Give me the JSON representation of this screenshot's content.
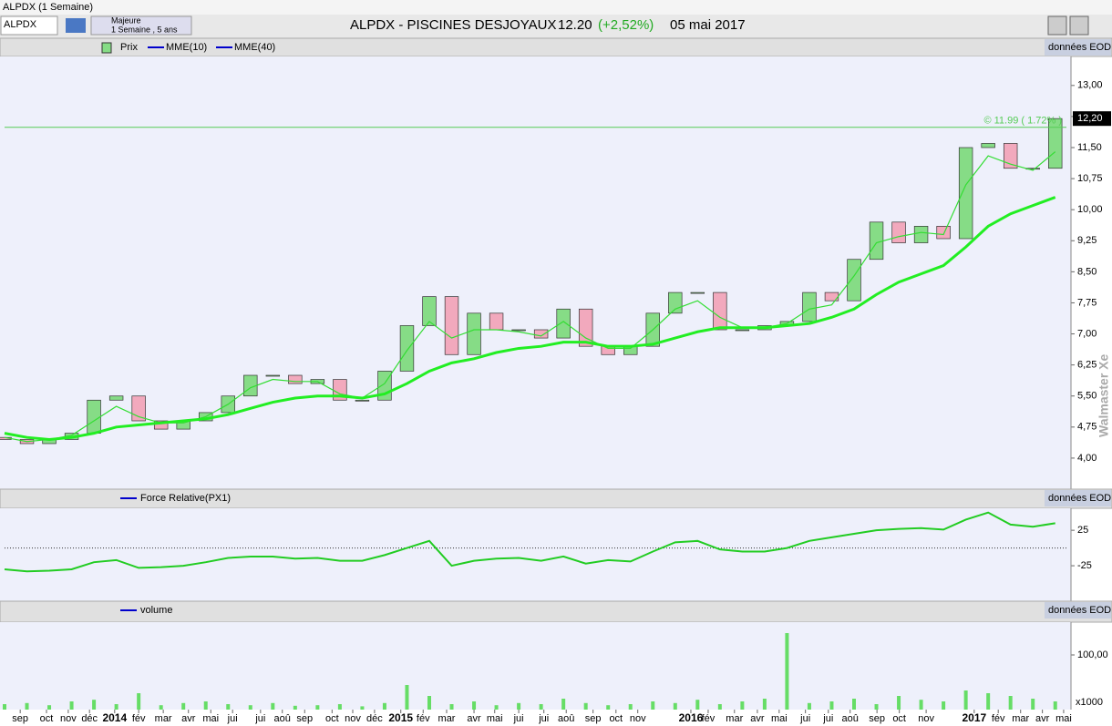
{
  "window_title": "ALPDX (1 Semaine)",
  "toolbar": {
    "symbol": "ALPDX",
    "group": "Majeure",
    "period": "1 Semaine , 5 ans",
    "title": "ALPDX - PISCINES DESJOYAUX",
    "price": "12.20",
    "change": "(+2,52%)",
    "date": "05 mai 2017"
  },
  "watermark": "Walmaster Xe",
  "on_button": "ON",
  "chart_data": [
    {
      "type": "candlestick",
      "source": "données EOD",
      "legend": "Prix",
      "up_color": "#86dc86",
      "down_color": "#f2a9bd",
      "x": [
        0,
        4,
        8,
        12,
        16,
        20,
        24,
        28,
        32,
        36,
        40,
        44,
        48,
        52,
        56,
        60,
        64,
        68,
        72,
        76,
        80,
        84,
        88,
        92,
        96,
        100,
        104,
        108,
        112,
        116,
        120,
        124,
        128,
        132,
        136,
        140,
        144,
        148,
        152,
        156,
        160,
        164,
        168,
        172,
        176,
        180,
        184,
        188
      ],
      "open": [
        4.5,
        4.45,
        4.35,
        4.45,
        4.6,
        5.4,
        5.5,
        4.9,
        4.7,
        4.9,
        5.1,
        5.5,
        6.0,
        6.0,
        5.8,
        5.9,
        5.4,
        5.4,
        6.1,
        7.2,
        7.9,
        6.5,
        7.5,
        7.1,
        7.1,
        6.9,
        7.6,
        6.7,
        6.5,
        6.7,
        7.5,
        8.0,
        8.0,
        7.1,
        7.1,
        7.2,
        7.3,
        8.0,
        7.8,
        8.8,
        9.7,
        9.2,
        9.6,
        9.3,
        11.5,
        11.6,
        11.0,
        11.0
      ],
      "close": [
        4.45,
        4.35,
        4.45,
        4.6,
        5.4,
        5.5,
        4.9,
        4.7,
        4.9,
        5.1,
        5.5,
        6.0,
        6.0,
        5.8,
        5.9,
        5.4,
        5.4,
        6.1,
        7.2,
        7.9,
        6.5,
        7.5,
        7.1,
        7.1,
        6.9,
        7.6,
        6.7,
        6.5,
        6.7,
        7.5,
        8.0,
        8.0,
        7.1,
        7.1,
        7.2,
        7.3,
        8.0,
        7.8,
        8.8,
        9.7,
        9.2,
        9.6,
        9.3,
        11.5,
        11.6,
        11.0,
        11.0,
        12.2
      ],
      "series": [
        {
          "name": "MME(10)",
          "color": "#33dd33",
          "values": [
            4.5,
            4.4,
            4.45,
            4.55,
            4.9,
            5.25,
            5.0,
            4.85,
            4.85,
            5.0,
            5.3,
            5.7,
            5.9,
            5.85,
            5.85,
            5.55,
            5.45,
            5.8,
            6.6,
            7.3,
            6.9,
            7.1,
            7.1,
            7.05,
            6.95,
            7.3,
            6.9,
            6.65,
            6.65,
            7.1,
            7.6,
            7.8,
            7.4,
            7.15,
            7.15,
            7.25,
            7.6,
            7.7,
            8.4,
            9.2,
            9.35,
            9.45,
            9.4,
            10.6,
            11.3,
            11.1,
            10.95,
            11.4
          ]
        },
        {
          "name": "MME(40)",
          "color": "#22ee22",
          "values": [
            4.6,
            4.5,
            4.45,
            4.5,
            4.6,
            4.75,
            4.8,
            4.85,
            4.9,
            4.95,
            5.05,
            5.2,
            5.35,
            5.45,
            5.5,
            5.5,
            5.45,
            5.55,
            5.8,
            6.1,
            6.3,
            6.4,
            6.55,
            6.65,
            6.7,
            6.8,
            6.8,
            6.7,
            6.7,
            6.75,
            6.9,
            7.05,
            7.15,
            7.15,
            7.15,
            7.2,
            7.25,
            7.4,
            7.6,
            7.95,
            8.25,
            8.45,
            8.65,
            9.1,
            9.6,
            9.9,
            10.1,
            10.3
          ]
        }
      ],
      "hline": {
        "value": 11.99,
        "label": "© 11.99 ( 1.72% )",
        "color": "#55cc55"
      },
      "last_price": {
        "value": 12.2,
        "label": "12,20"
      },
      "xlim": [
        0,
        190
      ],
      "ylim": [
        3.25,
        13.7
      ],
      "yticks": [
        {
          "value": 13,
          "label": "13,00"
        },
        {
          "value": 12.25,
          "label": "12,25"
        },
        {
          "value": 11.5,
          "label": "11,50"
        },
        {
          "value": 10.75,
          "label": "10,75"
        },
        {
          "value": 10,
          "label": "10,00"
        },
        {
          "value": 9.25,
          "label": "9,25"
        },
        {
          "value": 8.5,
          "label": "8,50"
        },
        {
          "value": 7.75,
          "label": "7,75"
        },
        {
          "value": 7,
          "label": "7,00"
        },
        {
          "value": 6.25,
          "label": "6,25"
        },
        {
          "value": 5.5,
          "label": "5,50"
        },
        {
          "value": 4.75,
          "label": "4,75"
        },
        {
          "value": 4,
          "label": "4,00"
        }
      ]
    },
    {
      "type": "line",
      "source": "données EOD",
      "legend": "Force Relative(PX1)",
      "reference": 0,
      "x": [
        0,
        4,
        8,
        12,
        16,
        20,
        24,
        28,
        32,
        36,
        40,
        44,
        48,
        52,
        56,
        60,
        64,
        68,
        72,
        76,
        80,
        84,
        88,
        92,
        96,
        100,
        104,
        108,
        112,
        116,
        120,
        124,
        128,
        132,
        136,
        140,
        144,
        148,
        152,
        156,
        160,
        164,
        168,
        172,
        176,
        180,
        184,
        188
      ],
      "series": [
        {
          "name": "Force Relative(PX1)",
          "color": "#22cc22",
          "values": [
            -30,
            -33,
            -32,
            -30,
            -20,
            -17,
            -28,
            -27,
            -25,
            -20,
            -14,
            -12,
            -12,
            -15,
            -14,
            -18,
            -18,
            -10,
            0,
            10,
            -25,
            -18,
            -15,
            -14,
            -18,
            -12,
            -22,
            -17,
            -19,
            -5,
            8,
            10,
            -2,
            -5,
            -5,
            0,
            10,
            15,
            20,
            25,
            27,
            28,
            26,
            40,
            50,
            33,
            30,
            35
          ]
        }
      ],
      "xlim": [
        0,
        190
      ],
      "ylim": [
        -75,
        56
      ],
      "yticks": [
        25,
        -25
      ]
    },
    {
      "type": "bar",
      "source": "données EOD",
      "legend": "volume",
      "unit": "x1000",
      "color": "#66dd66",
      "x": [
        0,
        4,
        8,
        12,
        16,
        20,
        24,
        28,
        32,
        36,
        40,
        44,
        48,
        52,
        56,
        60,
        64,
        68,
        72,
        76,
        80,
        84,
        88,
        92,
        96,
        100,
        104,
        108,
        112,
        116,
        120,
        124,
        128,
        132,
        136,
        140,
        144,
        148,
        152,
        156,
        160,
        164,
        168,
        172,
        176,
        180,
        184,
        188
      ],
      "values": [
        10,
        12,
        8,
        15,
        18,
        10,
        30,
        8,
        12,
        15,
        10,
        8,
        12,
        7,
        8,
        10,
        6,
        12,
        45,
        25,
        10,
        15,
        8,
        12,
        10,
        20,
        12,
        8,
        10,
        15,
        12,
        18,
        10,
        15,
        20,
        140,
        12,
        15,
        20,
        10,
        25,
        18,
        15,
        35,
        30,
        25,
        20,
        15
      ],
      "xlim": [
        0,
        190
      ],
      "ylim": [
        0,
        160
      ],
      "yticks": [
        {
          "value": 100,
          "label": "100,00"
        }
      ],
      "xticks": [
        {
          "value": 2.8,
          "label": "sep"
        },
        {
          "value": 7.5,
          "label": "oct"
        },
        {
          "value": 11.4,
          "label": "nov"
        },
        {
          "value": 15.2,
          "label": "déc"
        },
        {
          "value": 19.7,
          "label": "2014"
        },
        {
          "value": 24.0,
          "label": "fév"
        },
        {
          "value": 28.4,
          "label": "mar"
        },
        {
          "value": 32.9,
          "label": "avr"
        },
        {
          "value": 36.9,
          "label": "mai"
        },
        {
          "value": 40.8,
          "label": "jui"
        },
        {
          "value": 45.8,
          "label": "jui"
        },
        {
          "value": 49.7,
          "label": "aoû"
        },
        {
          "value": 53.7,
          "label": "sep"
        },
        {
          "value": 58.6,
          "label": "oct"
        },
        {
          "value": 62.3,
          "label": "nov"
        },
        {
          "value": 66.2,
          "label": "déc"
        },
        {
          "value": 70.9,
          "label": "2015"
        },
        {
          "value": 74.9,
          "label": "fév"
        },
        {
          "value": 79.1,
          "label": "mar"
        },
        {
          "value": 84.0,
          "label": "avr"
        },
        {
          "value": 87.7,
          "label": "mai"
        },
        {
          "value": 92.0,
          "label": "jui"
        },
        {
          "value": 96.5,
          "label": "jui"
        },
        {
          "value": 100.5,
          "label": "aoû"
        },
        {
          "value": 105.3,
          "label": "sep"
        },
        {
          "value": 109.4,
          "label": "oct"
        },
        {
          "value": 113.3,
          "label": "nov"
        },
        {
          "value": 122.8,
          "label": "2016"
        },
        {
          "value": 125.9,
          "label": "fév"
        },
        {
          "value": 130.6,
          "label": "mar"
        },
        {
          "value": 134.7,
          "label": "avr"
        },
        {
          "value": 138.6,
          "label": "mai"
        },
        {
          "value": 143.3,
          "label": "jui"
        },
        {
          "value": 147.4,
          "label": "jui"
        },
        {
          "value": 151.3,
          "label": "aoû"
        },
        {
          "value": 156.1,
          "label": "sep"
        },
        {
          "value": 160.1,
          "label": "oct"
        },
        {
          "value": 164.9,
          "label": "nov"
        },
        {
          "value": 173.5,
          "label": "2017"
        },
        {
          "value": 177.8,
          "label": "fév"
        },
        {
          "value": 181.8,
          "label": "mar"
        },
        {
          "value": 185.7,
          "label": "avr"
        },
        {
          "value": 189.5,
          "label": "mai"
        }
      ]
    }
  ]
}
